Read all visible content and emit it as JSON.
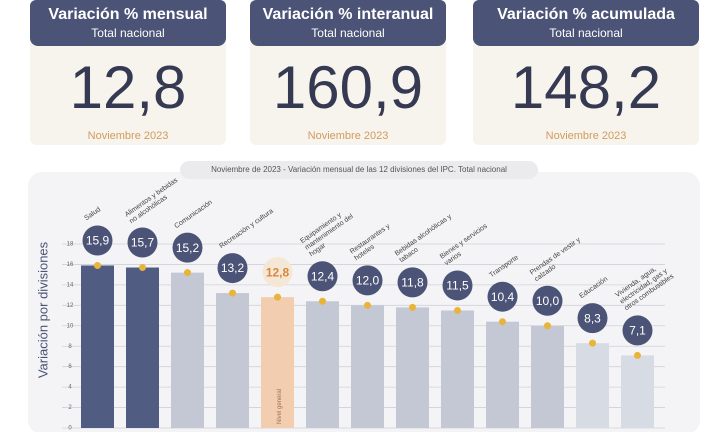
{
  "cards": [
    {
      "title": "Variación % mensual",
      "subtitle": "Total nacional",
      "value": "12,8",
      "footer": "Noviembre 2023"
    },
    {
      "title": "Variación % interanual",
      "subtitle": "Total nacional",
      "value": "160,9",
      "footer": "Noviembre 2023"
    },
    {
      "title": "Variación % acumulada",
      "subtitle": "Total nacional",
      "value": "148,2",
      "footer": "Noviembre 2023"
    }
  ],
  "chart_data": {
    "type": "bar",
    "title": "Noviembre de 2023 - Variación mensual de las 12 divisiones del IPC. Total nacional",
    "y_label": "Variación por divisiones",
    "categories": [
      "Salud",
      "Alimentos y bebidas no alcohólicas",
      "Comunicación",
      "Recreación y cultura",
      "Nivel general",
      "Equipamiento y mantenimiento del hogar",
      "Restaurantes y hoteles",
      "Bebidas alcohólicas y tabaco",
      "Bienes y servicios varios",
      "Transporte",
      "Prendas de vestir y calzado",
      "Educación",
      "Vivienda, agua, electricidad, gas y otros combustibles"
    ],
    "values": [
      15.9,
      15.7,
      15.2,
      13.2,
      12.8,
      12.4,
      12.0,
      11.8,
      11.5,
      10.4,
      10.0,
      8.3,
      7.1
    ],
    "value_labels": [
      "15,9",
      "15,7",
      "15,2",
      "13,2",
      "12,8",
      "12,4",
      "12,0",
      "11,8",
      "11,5",
      "10,4",
      "10,0",
      "8,3",
      "7,1"
    ],
    "colors": [
      "#515c82",
      "#515c82",
      "#c3c8d4",
      "#c3c8d4",
      "#f2cdb0",
      "#c3c8d4",
      "#c3c8d4",
      "#c3c8d4",
      "#c3c8d4",
      "#c3c8d4",
      "#c3c8d4",
      "#d7dbe3",
      "#d7dbe3"
    ],
    "ylim": [
      0,
      18
    ],
    "yticks": [
      0,
      2,
      4,
      6,
      8,
      10,
      12,
      14,
      16,
      18
    ],
    "grid": true
  }
}
